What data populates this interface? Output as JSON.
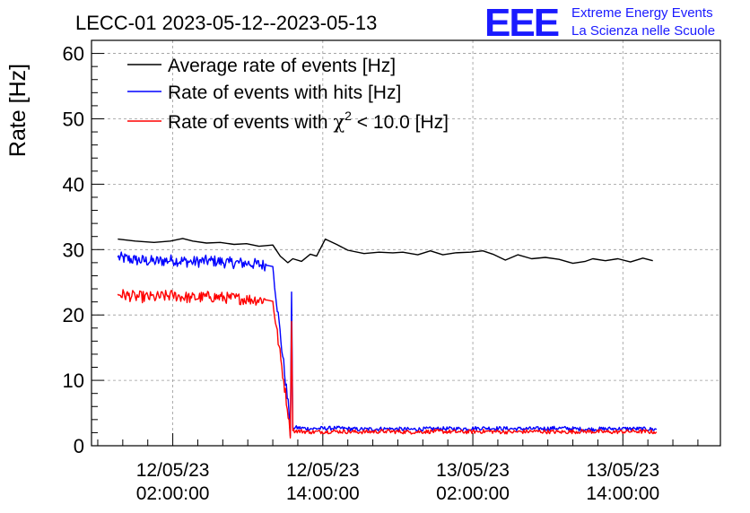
{
  "chart_data": {
    "type": "line",
    "title": "LECC-01 2023-05-12--2023-05-13",
    "ylabel": "Rate [Hz]",
    "xlabel": "",
    "ylim": [
      0,
      62
    ],
    "yticks": [
      0,
      10,
      20,
      30,
      40,
      50,
      60
    ],
    "x_unit": "hours since 12/05/23 00:00:00",
    "xlim": [
      -4.5,
      45.8
    ],
    "xticks": [
      {
        "x": 2,
        "date": "12/05/23",
        "time": "02:00:00"
      },
      {
        "x": 14,
        "date": "12/05/23",
        "time": "14:00:00"
      },
      {
        "x": 26,
        "date": "13/05/23",
        "time": "02:00:00"
      },
      {
        "x": 38,
        "date": "13/05/23",
        "time": "14:00:00"
      }
    ],
    "grid": true,
    "legend_position": "top-left",
    "series": [
      {
        "name": "Average rate of events [Hz]",
        "color": "#000000",
        "points": [
          [
            -2.4,
            31.6
          ],
          [
            -1.0,
            31.3
          ],
          [
            0.5,
            31.1
          ],
          [
            1.8,
            31.3
          ],
          [
            2.8,
            31.7
          ],
          [
            3.6,
            31.3
          ],
          [
            4.7,
            31.0
          ],
          [
            5.8,
            31.1
          ],
          [
            6.9,
            30.8
          ],
          [
            7.9,
            30.9
          ],
          [
            8.9,
            30.5
          ],
          [
            10.0,
            30.7
          ],
          [
            10.6,
            29.0
          ],
          [
            11.2,
            28.0
          ],
          [
            11.6,
            28.6
          ],
          [
            12.3,
            28.2
          ],
          [
            13.0,
            29.3
          ],
          [
            13.5,
            29.0
          ],
          [
            14.2,
            31.6
          ],
          [
            15.1,
            30.8
          ],
          [
            16.0,
            29.9
          ],
          [
            17.3,
            29.4
          ],
          [
            18.5,
            29.6
          ],
          [
            19.6,
            29.5
          ],
          [
            20.4,
            29.6
          ],
          [
            21.6,
            29.2
          ],
          [
            22.6,
            29.8
          ],
          [
            23.6,
            29.2
          ],
          [
            24.6,
            29.5
          ],
          [
            25.8,
            29.6
          ],
          [
            26.8,
            29.8
          ],
          [
            27.6,
            29.3
          ],
          [
            28.6,
            28.4
          ],
          [
            29.6,
            29.2
          ],
          [
            30.7,
            28.6
          ],
          [
            31.8,
            28.8
          ],
          [
            32.9,
            28.5
          ],
          [
            34.0,
            27.9
          ],
          [
            35.0,
            28.2
          ],
          [
            35.6,
            28.6
          ],
          [
            36.6,
            28.3
          ],
          [
            37.6,
            28.6
          ],
          [
            38.6,
            28.1
          ],
          [
            39.6,
            28.7
          ],
          [
            40.4,
            28.3
          ]
        ]
      },
      {
        "name": "Rate of events with hits [Hz]",
        "color": "#0000ff",
        "points": [
          [
            -2.4,
            28.8
          ],
          [
            -1.0,
            28.4
          ],
          [
            0.5,
            28.2
          ],
          [
            2.0,
            28.4
          ],
          [
            3.5,
            28.1
          ],
          [
            5.0,
            28.3
          ],
          [
            6.5,
            28.0
          ],
          [
            8.0,
            27.9
          ],
          [
            9.5,
            27.6
          ],
          [
            10.0,
            27.4
          ],
          [
            11.3,
            5.0
          ],
          [
            11.4,
            1.5
          ],
          [
            11.5,
            23.5
          ],
          [
            11.6,
            2.8
          ],
          [
            13.0,
            2.6
          ],
          [
            15.0,
            2.7
          ],
          [
            17.0,
            2.5
          ],
          [
            19.0,
            2.6
          ],
          [
            21.0,
            2.5
          ],
          [
            23.0,
            2.6
          ],
          [
            25.0,
            2.6
          ],
          [
            27.0,
            2.7
          ],
          [
            29.0,
            2.6
          ],
          [
            31.0,
            2.6
          ],
          [
            33.0,
            2.7
          ],
          [
            35.0,
            2.5
          ],
          [
            37.0,
            2.6
          ],
          [
            39.0,
            2.6
          ],
          [
            40.7,
            2.5
          ]
        ]
      },
      {
        "name": "Rate of events with χ² < 10.0 [Hz]",
        "color": "#ff0000",
        "points": [
          [
            -2.4,
            23.2
          ],
          [
            -1.0,
            22.8
          ],
          [
            0.5,
            22.7
          ],
          [
            2.0,
            23.0
          ],
          [
            3.5,
            22.6
          ],
          [
            5.0,
            22.8
          ],
          [
            6.5,
            22.6
          ],
          [
            8.0,
            22.4
          ],
          [
            9.5,
            22.3
          ],
          [
            10.0,
            22.1
          ],
          [
            11.3,
            4.0
          ],
          [
            11.4,
            1.2
          ],
          [
            11.5,
            19.0
          ],
          [
            11.6,
            2.3
          ],
          [
            13.0,
            2.1
          ],
          [
            15.0,
            2.2
          ],
          [
            17.0,
            2.1
          ],
          [
            19.0,
            2.2
          ],
          [
            21.0,
            2.1
          ],
          [
            23.0,
            2.2
          ],
          [
            25.0,
            2.1
          ],
          [
            27.0,
            2.2
          ],
          [
            29.0,
            2.1
          ],
          [
            31.0,
            2.2
          ],
          [
            33.0,
            2.1
          ],
          [
            35.0,
            2.2
          ],
          [
            37.0,
            2.1
          ],
          [
            39.0,
            2.2
          ],
          [
            40.7,
            2.1
          ]
        ]
      }
    ]
  },
  "brand": {
    "logo": "EEE",
    "line1": "Extreme Energy Events",
    "line2": "La Scienza nelle Scuole",
    "color": "#1a1aff"
  }
}
